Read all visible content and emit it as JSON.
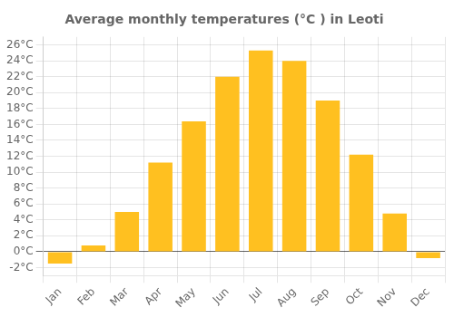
{
  "chart_data": {
    "type": "bar",
    "title": "Average monthly temperatures (°C ) in Leoti",
    "categories": [
      "Jan",
      "Feb",
      "Mar",
      "Apr",
      "May",
      "Jun",
      "Jul",
      "Aug",
      "Sep",
      "Oct",
      "Nov",
      "Dec"
    ],
    "values": [
      -1.5,
      0.8,
      5.0,
      11.2,
      16.4,
      22.0,
      25.3,
      24.0,
      19.0,
      12.2,
      4.8,
      -0.8
    ],
    "color": "#FFC020",
    "ylim": [
      -3,
      27
    ],
    "yticks": [
      {
        "value": -2,
        "label": "-2°C"
      },
      {
        "value": 0,
        "label": "0°C"
      },
      {
        "value": 2,
        "label": "2°C"
      },
      {
        "value": 4,
        "label": "4°C"
      },
      {
        "value": 6,
        "label": "6°C"
      },
      {
        "value": 8,
        "label": "8°C"
      },
      {
        "value": 10,
        "label": "10°C"
      },
      {
        "value": 12,
        "label": "12°C"
      },
      {
        "value": 14,
        "label": "14°C"
      },
      {
        "value": 16,
        "label": "16°C"
      },
      {
        "value": 18,
        "label": "18°C"
      },
      {
        "value": 20,
        "label": "20°C"
      },
      {
        "value": 22,
        "label": "22°C"
      },
      {
        "value": 24,
        "label": "24°C"
      },
      {
        "value": 26,
        "label": "26°C"
      }
    ],
    "grid": true
  }
}
